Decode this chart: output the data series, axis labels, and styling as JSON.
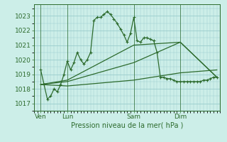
{
  "background_color": "#cceee8",
  "grid_color": "#99cccc",
  "line_color": "#2d6b2d",
  "xlabel_text": "Pression niveau de la mer( hPa )",
  "yticks": [
    1017,
    1018,
    1019,
    1020,
    1021,
    1022,
    1023
  ],
  "ylim": [
    1016.5,
    1023.8
  ],
  "xtick_labels": [
    "Ven",
    "Lun",
    "Sam",
    "Dim"
  ],
  "xtick_positions": [
    1,
    5,
    15,
    22
  ],
  "xlim": [
    0,
    28
  ],
  "vlines": [
    1,
    5,
    15,
    22
  ],
  "line1_x": [
    1,
    1.5,
    2,
    2.5,
    3,
    3.5,
    4,
    4.5,
    5,
    5.5,
    6,
    6.5,
    7,
    7.5,
    8,
    8.5,
    9,
    9.5,
    10,
    10.5,
    11,
    11.5,
    12,
    12.5,
    13,
    13.5,
    14,
    14.5,
    15,
    15.5,
    16,
    16.5,
    17,
    17.5,
    18,
    18.5,
    19,
    19.5,
    20,
    20.5,
    21,
    21.5,
    22,
    22.5,
    23,
    23.5,
    24,
    24.5,
    25,
    25.5,
    26,
    26.5,
    27,
    27.5
  ],
  "line1_y": [
    1019.3,
    1018.3,
    1017.3,
    1017.5,
    1018.0,
    1017.8,
    1018.3,
    1019.0,
    1019.9,
    1019.3,
    1019.8,
    1020.5,
    1020.0,
    1019.7,
    1020.0,
    1020.5,
    1022.7,
    1022.9,
    1022.9,
    1023.1,
    1023.3,
    1023.1,
    1022.8,
    1022.5,
    1022.1,
    1021.7,
    1021.2,
    1021.8,
    1022.9,
    1021.3,
    1021.2,
    1021.5,
    1021.5,
    1021.4,
    1021.3,
    1020.5,
    1018.8,
    1018.8,
    1018.7,
    1018.7,
    1018.6,
    1018.5,
    1018.5,
    1018.5,
    1018.5,
    1018.5,
    1018.5,
    1018.5,
    1018.5,
    1018.6,
    1018.6,
    1018.7,
    1018.8,
    1018.8
  ],
  "line2_x": [
    1,
    5,
    15,
    22,
    27.5
  ],
  "line2_y": [
    1018.3,
    1018.2,
    1018.6,
    1019.1,
    1019.3
  ],
  "line3_x": [
    1,
    5,
    15,
    22,
    27.5
  ],
  "line3_y": [
    1018.3,
    1018.5,
    1019.8,
    1021.2,
    1018.8
  ],
  "line4_x": [
    1,
    5,
    15,
    22,
    27.5
  ],
  "line4_y": [
    1018.3,
    1018.6,
    1021.0,
    1021.2,
    1018.8
  ]
}
